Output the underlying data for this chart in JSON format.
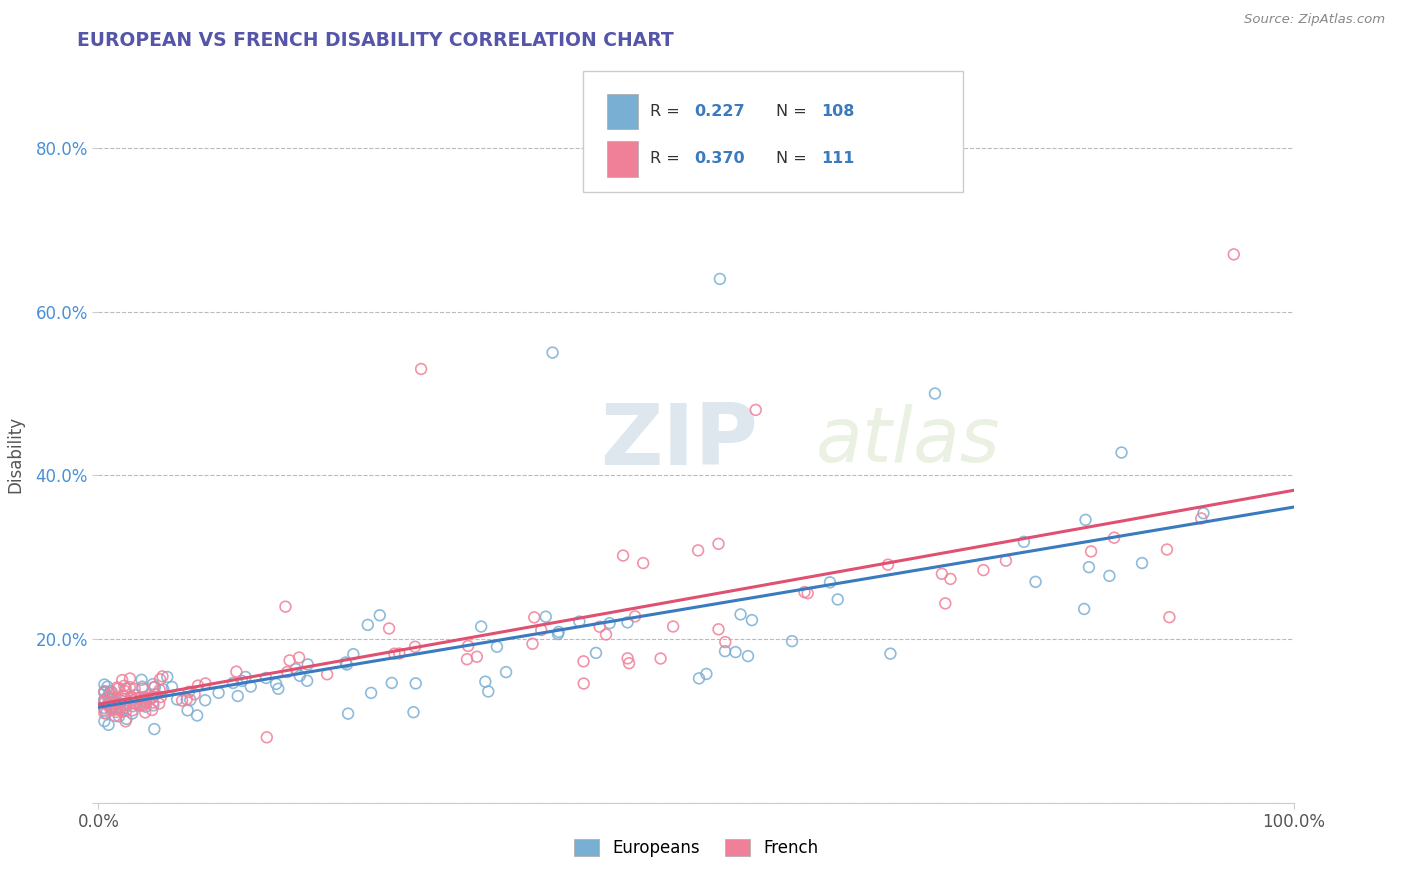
{
  "title": "EUROPEAN VS FRENCH DISABILITY CORRELATION CHART",
  "source": "Source: ZipAtlas.com",
  "ylabel": "Disability",
  "xlim": [
    0.0,
    1.0
  ],
  "ylim": [
    0.0,
    0.85
  ],
  "y_ticks": [
    0.0,
    0.2,
    0.4,
    0.6,
    0.8
  ],
  "y_tick_labels": [
    "",
    "20.0%",
    "40.0%",
    "60.0%",
    "80.0%"
  ],
  "europeans_color": "#7aafd4",
  "french_color": "#f08098",
  "europeans_line_color": "#3a7abf",
  "french_line_color": "#e05070",
  "R_europeans": 0.227,
  "N_europeans": 108,
  "R_french": 0.37,
  "N_french": 111,
  "legend_label_europeans": "Europeans",
  "legend_label_french": "French",
  "watermark_zip": "ZIP",
  "watermark_atlas": "atlas",
  "background_color": "#ffffff",
  "grid_color": "#bbbbbb",
  "title_color": "#5555aa",
  "marker_size": 60,
  "marker_linewidth": 1.2
}
